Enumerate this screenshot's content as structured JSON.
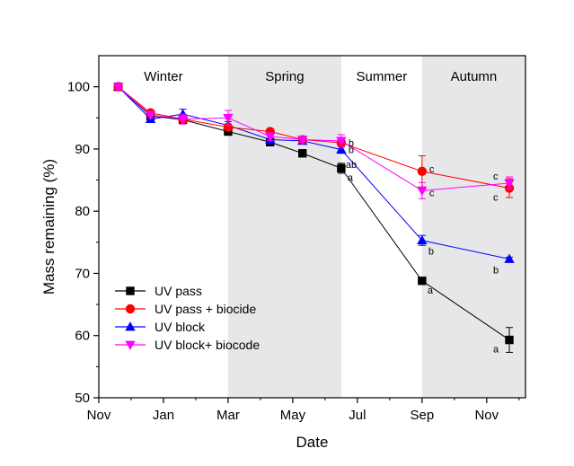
{
  "chart_data": {
    "type": "line",
    "xlabel": "Date",
    "ylabel": "Mass remaining (%)",
    "ylim": [
      50,
      105
    ],
    "xlim": [
      "Nov",
      "Nov+"
    ],
    "x_ticks": [
      {
        "label": "Nov",
        "month": 0
      },
      {
        "label": "Jan",
        "month": 2
      },
      {
        "label": "Mar",
        "month": 4
      },
      {
        "label": "May",
        "month": 6
      },
      {
        "label": "Jul",
        "month": 8
      },
      {
        "label": "Sep",
        "month": 10
      },
      {
        "label": "Nov",
        "month": 12
      }
    ],
    "y_ticks": [
      50,
      60,
      70,
      80,
      90,
      100
    ],
    "seasons": [
      {
        "name": "Winter",
        "start": 0,
        "end": 4,
        "shaded": false
      },
      {
        "name": "Spring",
        "start": 4,
        "end": 7.5,
        "shaded": true
      },
      {
        "name": "Summer",
        "start": 7.5,
        "end": 10,
        "shaded": false
      },
      {
        "name": "Autumn",
        "start": 10,
        "end": 13.2,
        "shaded": true
      }
    ],
    "x": [
      0.6,
      1.6,
      2.6,
      4.0,
      5.3,
      6.3,
      7.5,
      10.0,
      12.7
    ],
    "series": [
      {
        "name": "UV pass",
        "color": "#000000",
        "marker": "square",
        "values": [
          100,
          95.3,
          94.7,
          92.8,
          91.1,
          89.3,
          86.9,
          68.8,
          59.3
        ],
        "errors": [
          0.5,
          0.5,
          0.6,
          0.5,
          0.6,
          0.4,
          0.8,
          0.4,
          2.0
        ]
      },
      {
        "name": "UV pass + biocide",
        "color": "#ff0000",
        "marker": "circle",
        "values": [
          100,
          95.8,
          94.8,
          93.5,
          92.8,
          91.5,
          91.0,
          86.4,
          83.7
        ],
        "errors": [
          0.4,
          0.4,
          0.6,
          0.5,
          0.4,
          0.4,
          0.6,
          2.5,
          1.5
        ]
      },
      {
        "name": "UV block",
        "color": "#0000ff",
        "marker": "triangle-up",
        "values": [
          100,
          94.8,
          95.6,
          93.8,
          91.5,
          91.3,
          89.9,
          75.3,
          72.3
        ],
        "errors": [
          0.4,
          0.5,
          0.8,
          0.6,
          0.7,
          0.5,
          0.6,
          0.8,
          0.3
        ]
      },
      {
        "name": "UV block+ biocode",
        "color": "#ff00ff",
        "marker": "triangle-down",
        "values": [
          100,
          95.5,
          94.8,
          95.0,
          92.0,
          91.5,
          91.3,
          83.3,
          84.5
        ],
        "errors": [
          0.4,
          0.5,
          0.8,
          1.2,
          0.6,
          0.5,
          1.0,
          1.3,
          1.0
        ]
      }
    ],
    "annotations": [
      {
        "text": "b",
        "x": 7.5,
        "y": 91.0,
        "series": "UV pass + biocide"
      },
      {
        "text": "b",
        "x": 7.5,
        "y": 89.9,
        "series": "UV block"
      },
      {
        "text": "ab",
        "x": 7.5,
        "y": 89.3,
        "series": "UV block"
      },
      {
        "text": "a",
        "x": 7.5,
        "y": 86.9,
        "series": "UV pass"
      },
      {
        "text": "c",
        "x": 10.0,
        "y": 86.4,
        "series": "UV pass + biocide"
      },
      {
        "text": "c",
        "x": 10.0,
        "y": 83.3,
        "series": "UV block+ biocode"
      },
      {
        "text": "b",
        "x": 10.0,
        "y": 75.3,
        "series": "UV block"
      },
      {
        "text": "a",
        "x": 10.0,
        "y": 68.8,
        "series": "UV pass"
      },
      {
        "text": "c",
        "x": 12.7,
        "y": 84.5,
        "series": "UV block+ biocode"
      },
      {
        "text": "c",
        "x": 12.7,
        "y": 83.7,
        "series": "UV pass + biocide"
      },
      {
        "text": "b",
        "x": 12.7,
        "y": 72.3,
        "series": "UV block"
      },
      {
        "text": "a",
        "x": 12.7,
        "y": 59.3,
        "series": "UV pass"
      }
    ],
    "legend": {
      "placement": "lower-left"
    },
    "grid": false
  }
}
